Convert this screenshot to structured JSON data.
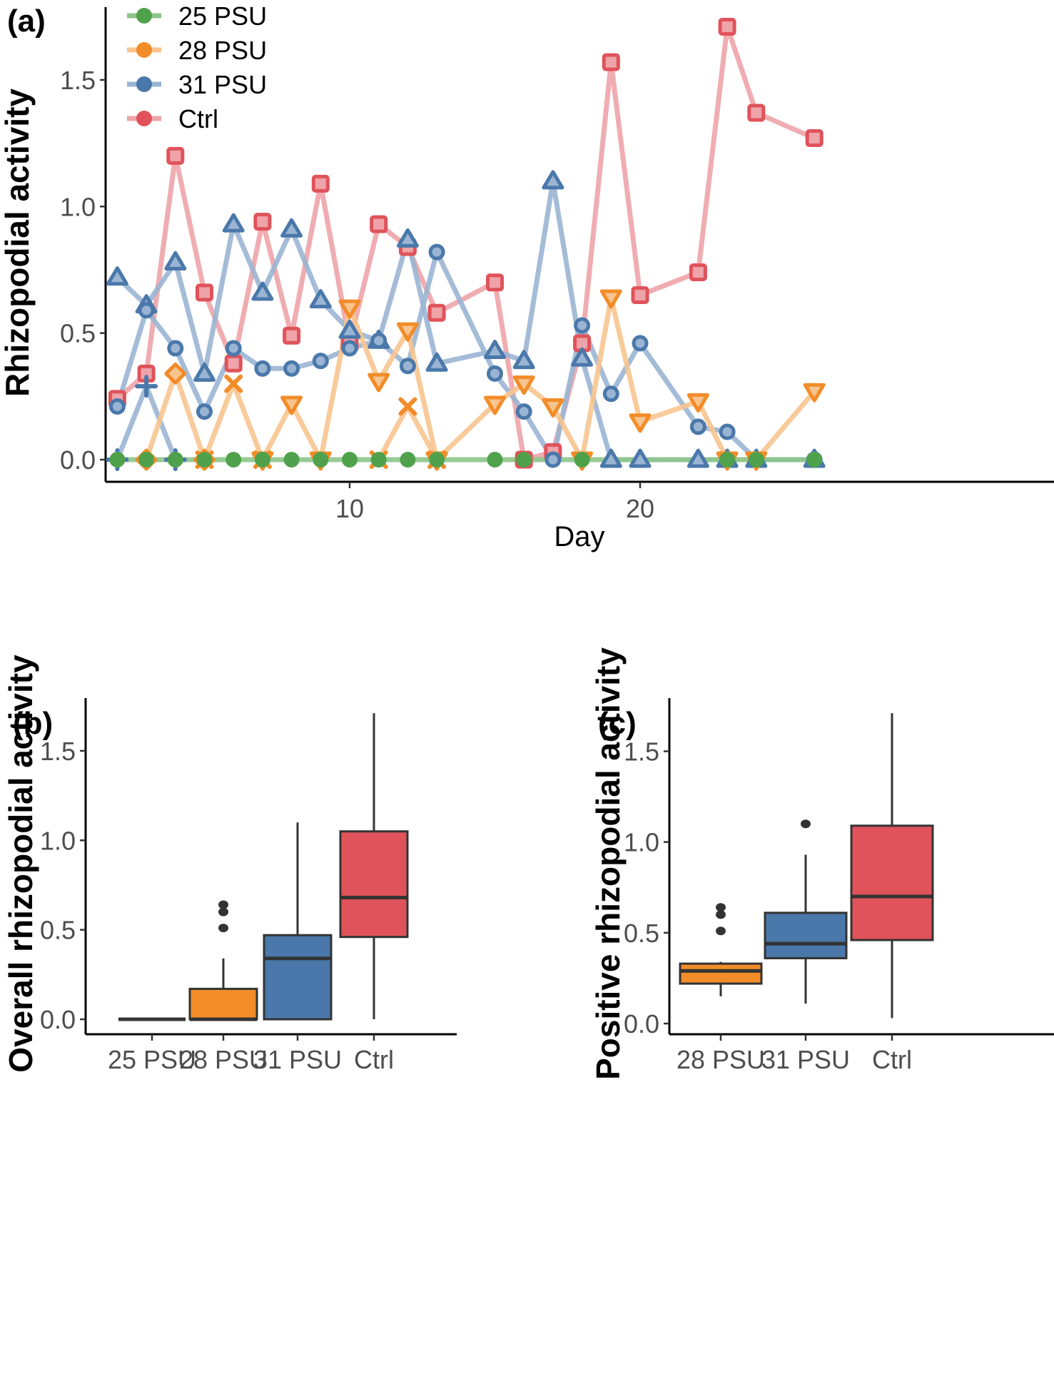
{
  "chart_data": [
    {
      "panel": "(a)",
      "type": "line",
      "title": "",
      "xlabel": "Day",
      "ylabel": "Rhizopodial activity",
      "xlim": [
        1.2,
        27
      ],
      "ylim": [
        -0.08,
        1.78
      ],
      "xticks": [
        10,
        20
      ],
      "xtick_labels": [
        "10",
        "20"
      ],
      "yticks": [
        0.0,
        0.5,
        1.0,
        1.5
      ],
      "ytick_labels": [
        "0.0",
        "0.5",
        "1.0",
        "1.5"
      ],
      "grid": false,
      "legend": {
        "placement": "top-left",
        "entries": [
          {
            "name": "25 PSU",
            "color": "#4fa24b"
          },
          {
            "name": "28 PSU",
            "color": "#f28c28"
          },
          {
            "name": "31 PSU",
            "color": "#4a78aa"
          },
          {
            "name": "Ctrl",
            "color": "#e0535b"
          }
        ]
      },
      "series": [
        {
          "name": "25 PSU",
          "group": "25 PSU",
          "marker": "circle-filled",
          "x": [
            2,
            3,
            4,
            5,
            6,
            7,
            8,
            9,
            10,
            11,
            12,
            13,
            15,
            16,
            18,
            23,
            24,
            26
          ],
          "y": [
            0,
            0,
            0,
            0,
            0,
            0,
            0,
            0,
            0,
            0,
            0,
            0,
            0,
            0,
            0,
            0,
            0,
            0
          ]
        },
        {
          "name": "28 PSU diamond",
          "group": "28 PSU",
          "marker": "diamond-open",
          "x": [
            3,
            4,
            5
          ],
          "y": [
            0,
            0.34,
            0
          ]
        },
        {
          "name": "28 PSU cross",
          "group": "28 PSU",
          "marker": "x",
          "x": [
            5,
            6,
            7
          ],
          "y": [
            0,
            0.3,
            0
          ]
        },
        {
          "name": "28 PSU triangle-down",
          "group": "28 PSU",
          "marker": "triangle-down-open",
          "x": [
            7,
            8,
            9,
            10,
            11,
            12,
            13
          ],
          "y": [
            0,
            0.22,
            0,
            0.6,
            0.31,
            0.51,
            0
          ]
        },
        {
          "name": "28 PSU cross 2",
          "group": "28 PSU",
          "marker": "x",
          "x": [
            11,
            12,
            13
          ],
          "y": [
            0,
            0.21,
            0
          ]
        },
        {
          "name": "28 PSU triangle-down 2",
          "group": "28 PSU",
          "marker": "triangle-down-open",
          "x": [
            13,
            15,
            16,
            17,
            18,
            19,
            20,
            22,
            23,
            24,
            26
          ],
          "y": [
            0,
            0.22,
            0.3,
            0.21,
            0,
            0.64,
            0.15,
            0.23,
            0,
            0,
            0.27
          ]
        },
        {
          "name": "31 PSU plus",
          "group": "31 PSU",
          "marker": "plus",
          "x": [
            2,
            3,
            4
          ],
          "y": [
            0,
            0.29,
            0
          ]
        },
        {
          "name": "31 PSU triangle",
          "group": "31 PSU",
          "marker": "triangle-open",
          "x": [
            2,
            3,
            4,
            5,
            6,
            7,
            8,
            9,
            10,
            11,
            12,
            13,
            15,
            16,
            17,
            18,
            19,
            20,
            22,
            23,
            24,
            26
          ],
          "y": [
            0.72,
            0.61,
            0.78,
            0.34,
            0.93,
            0.66,
            0.91,
            0.63,
            0.51,
            0.47,
            0.87,
            0.38,
            0.43,
            0.39,
            1.1,
            0.4,
            0,
            0,
            0,
            0,
            0,
            0
          ]
        },
        {
          "name": "31 PSU circle",
          "group": "31 PSU",
          "marker": "circle-open",
          "x": [
            2,
            3,
            4,
            5,
            6,
            7,
            8,
            9,
            10,
            11,
            12,
            13,
            15,
            16,
            17,
            18,
            19,
            20,
            22,
            23,
            24,
            26
          ],
          "y": [
            0.21,
            0.59,
            0.44,
            0.19,
            0.44,
            0.36,
            0.36,
            0.39,
            0.44,
            0.47,
            0.37,
            0.82,
            0.34,
            0.19,
            0,
            0.53,
            0.26,
            0.46,
            0.13,
            0.11,
            0,
            0
          ]
        },
        {
          "name": "Ctrl",
          "group": "Ctrl",
          "marker": "square-open",
          "x": [
            2,
            3,
            4,
            5,
            6,
            7,
            8,
            9,
            10,
            11,
            12,
            13,
            15,
            16,
            17,
            18,
            19,
            20,
            22,
            23,
            24,
            26
          ],
          "y": [
            0.24,
            0.34,
            1.2,
            0.66,
            0.38,
            0.94,
            0.49,
            1.09,
            0.46,
            0.93,
            0.84,
            0.58,
            0.7,
            0,
            0.03,
            0.46,
            1.57,
            0.65,
            0.74,
            1.71,
            1.37,
            1.27
          ]
        }
      ]
    },
    {
      "panel": "(b)",
      "type": "box",
      "title": "",
      "xlabel": "",
      "ylabel": "Overall rhizopodial activity",
      "ylim": [
        -0.08,
        1.78
      ],
      "yticks": [
        0.0,
        0.5,
        1.0,
        1.5
      ],
      "ytick_labels": [
        "0.0",
        "0.5",
        "1.0",
        "1.5"
      ],
      "categories": [
        "25 PSU",
        "28 PSU",
        "31 PSU",
        "Ctrl"
      ],
      "grid": false,
      "boxes": [
        {
          "name": "25 PSU",
          "color": "#4fa24b",
          "min": 0,
          "q1": 0,
          "median": 0,
          "q3": 0,
          "max": 0,
          "outliers": []
        },
        {
          "name": "28 PSU",
          "color": "#f28c28",
          "min": 0,
          "q1": 0,
          "median": 0,
          "q3": 0.17,
          "max": 0.34,
          "outliers": [
            0.51,
            0.6,
            0.64
          ]
        },
        {
          "name": "31 PSU",
          "color": "#4a78aa",
          "min": 0,
          "q1": 0,
          "median": 0.34,
          "q3": 0.47,
          "max": 1.1,
          "outliers": []
        },
        {
          "name": "Ctrl",
          "color": "#e0535b",
          "min": 0,
          "q1": 0.46,
          "median": 0.68,
          "q3": 1.05,
          "max": 1.71,
          "outliers": []
        }
      ]
    },
    {
      "panel": "(c)",
      "type": "box",
      "title": "",
      "xlabel": "",
      "ylabel": "Positive rhizopodial activity",
      "ylim": [
        -0.05,
        1.78
      ],
      "yticks": [
        0.0,
        0.5,
        1.0,
        1.5
      ],
      "ytick_labels": [
        "0.0",
        "0.5",
        "1.0",
        "1.5"
      ],
      "categories": [
        "28 PSU",
        "31 PSU",
        "Ctrl"
      ],
      "grid": false,
      "boxes": [
        {
          "name": "28 PSU",
          "color": "#f28c28",
          "min": 0.15,
          "q1": 0.22,
          "median": 0.29,
          "q3": 0.33,
          "max": 0.34,
          "outliers": [
            0.51,
            0.6,
            0.64
          ]
        },
        {
          "name": "31 PSU",
          "color": "#4a78aa",
          "min": 0.11,
          "q1": 0.36,
          "median": 0.44,
          "q3": 0.61,
          "max": 0.93,
          "outliers": [
            1.1
          ]
        },
        {
          "name": "Ctrl",
          "color": "#e0535b",
          "min": 0.03,
          "q1": 0.46,
          "median": 0.7,
          "q3": 1.09,
          "max": 1.71,
          "outliers": []
        }
      ]
    }
  ],
  "colors": {
    "25 PSU": "#4fa24b",
    "28 PSU": "#f28c28",
    "31 PSU": "#4a78aa",
    "Ctrl": "#e0535b",
    "25 PSU_line": "#8cc589",
    "28 PSU_line": "#f8c48f",
    "31 PSU_line": "#9ab5d3",
    "Ctrl_line": "#eea4a8"
  }
}
